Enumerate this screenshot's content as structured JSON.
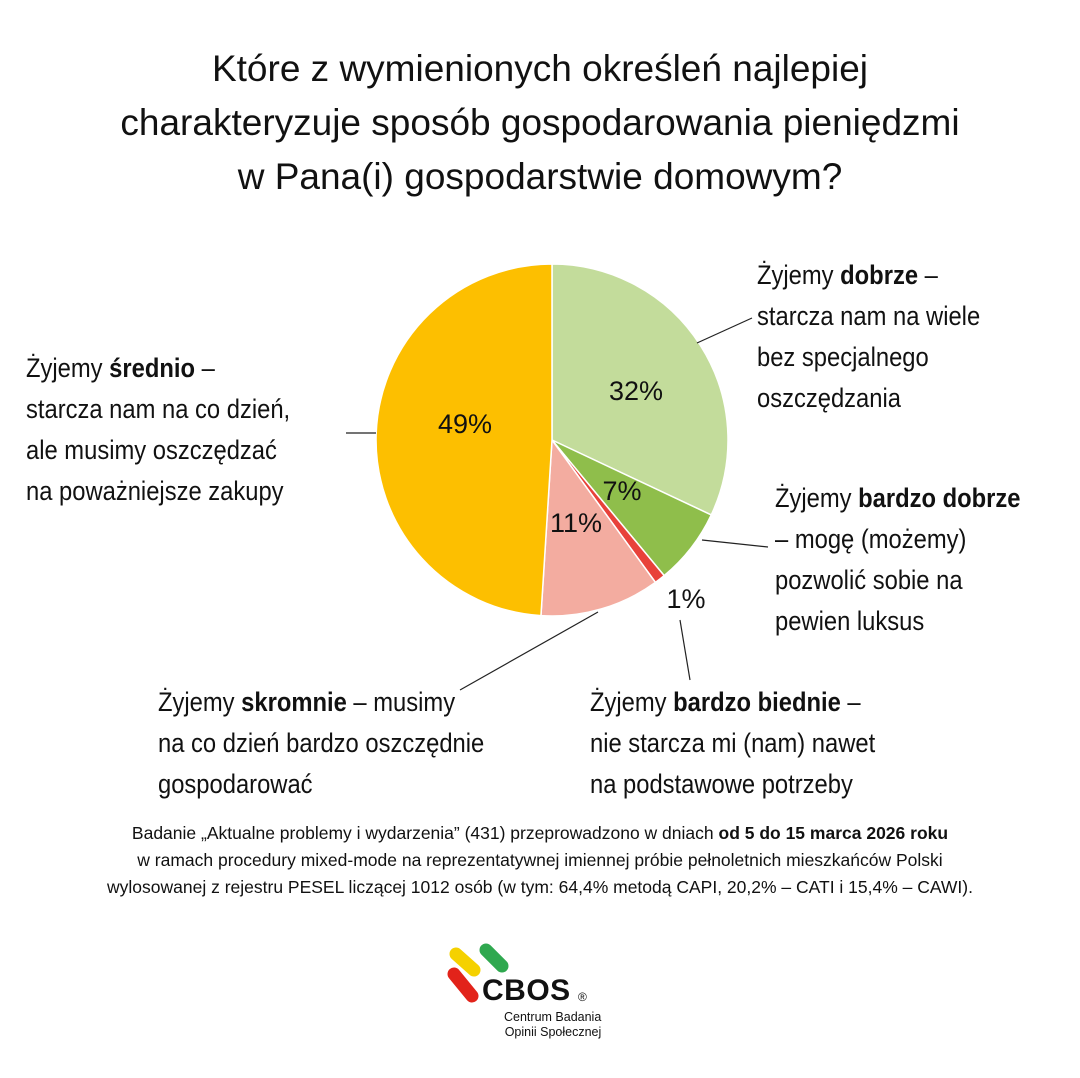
{
  "title": {
    "line1": "Które z wymienionych określeń najlepiej",
    "line2": "charakteryzuje sposób gospodarowania pieniędzmi",
    "line3": "w Pana(i) gospodarstwie domowym?"
  },
  "chart_data": {
    "type": "pie",
    "title": "Które z wymienionych określeń najlepiej charakteryzuje sposób gospodarowania pieniędzmi w Pana(i) gospodarstwie domowym?",
    "slices": [
      {
        "key": "dobrze",
        "value": 32,
        "label": "32%",
        "color": "#c3dc9b",
        "text": {
          "line1_pre": "Żyjemy ",
          "line1_bold": "dobrze",
          "line1_post": " –",
          "line2": "starcza nam na wiele",
          "line3": "bez specjalnego",
          "line4": "oszczędzania"
        }
      },
      {
        "key": "bardzo_dobrze",
        "value": 7,
        "label": "7%",
        "color": "#8fbe4b",
        "text": {
          "line1_pre": "Żyjemy ",
          "line1_bold": "bardzo dobrze",
          "line2": "– mogę (możemy)",
          "line3": "pozwolić sobie na",
          "line4": "pewien luksus"
        }
      },
      {
        "key": "bardzo_biednie",
        "value": 1,
        "label": "1%",
        "color": "#e8423a",
        "text": {
          "line1_pre": "Żyjemy ",
          "line1_bold": "bardzo biednie",
          "line1_post": " –",
          "line2": "nie starcza mi (nam) nawet",
          "line3": "na podstawowe potrzeby"
        }
      },
      {
        "key": "skromnie",
        "value": 11,
        "label": "11%",
        "color": "#f3aca0",
        "text": {
          "line1_pre": "Żyjemy ",
          "line1_bold": "skromnie",
          "line1_post": " – musimy",
          "line2": "na co dzień bardzo oszczędnie",
          "line3": "gospodarować"
        }
      },
      {
        "key": "srednio",
        "value": 49,
        "label": "49%",
        "color": "#fdbf00",
        "text": {
          "line1_pre": "Żyjemy ",
          "line1_bold": "średnio",
          "line1_post": " –",
          "line2": "starcza nam na co dzień,",
          "line3": "ale musimy oszczędzać",
          "line4": "na poważniejsze zakupy"
        }
      }
    ],
    "start_angle": "12 o'clock",
    "direction": "clockwise"
  },
  "footnote": {
    "line1_pre": "Badanie „Aktualne problemy i wydarzenia” (431) przeprowadzono w dniach ",
    "line1_bold": "od 5 do 15 marca 2026 roku",
    "line2": "w ramach procedury mixed-mode na reprezentatywnej imiennej próbie pełnoletnich mieszkańców Polski",
    "line3": "wylosowanej z rejestru PESEL liczącej 1012 osób (w tym: 64,4% metodą CAPI, 20,2% – CATI i 15,4% – CAWI)."
  },
  "logo": {
    "name": "CBOS",
    "registered": "®",
    "sub1": "Centrum Badania",
    "sub2": "Opinii Społecznej",
    "colors": [
      "#f5d100",
      "#2fa84f",
      "#e2231a"
    ]
  }
}
